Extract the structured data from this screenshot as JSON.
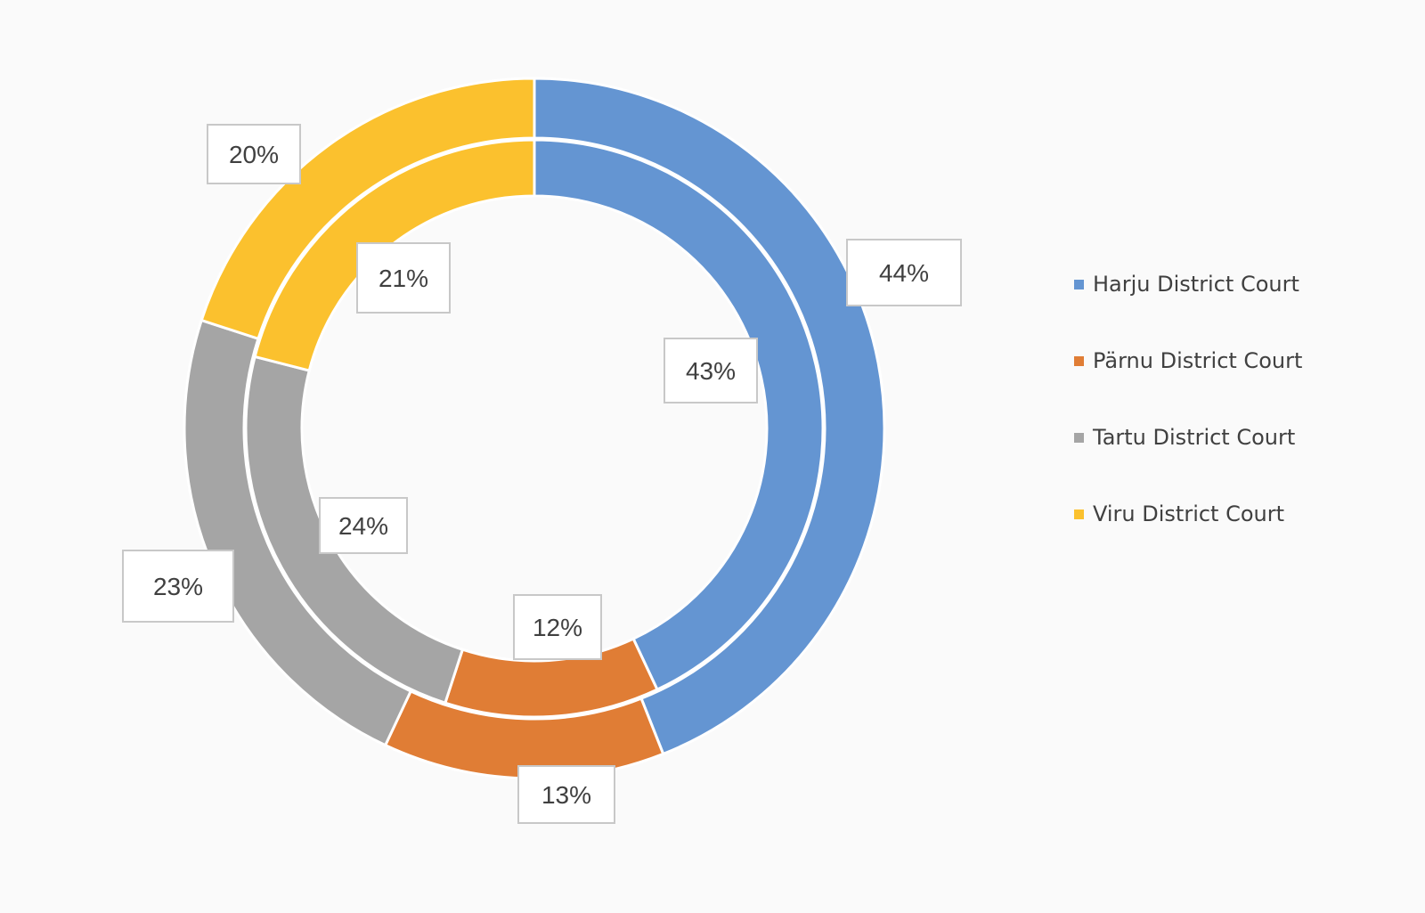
{
  "chart_data": {
    "type": "pie",
    "subtype": "doughnut",
    "categories": [
      "Harju District Court",
      "Pärnu District Court",
      "Tartu District Court",
      "Viru District Court"
    ],
    "series": [
      {
        "ring": "outer",
        "values": [
          44,
          13,
          23,
          20
        ],
        "labels": [
          "44%",
          "13%",
          "23%",
          "20%"
        ]
      },
      {
        "ring": "inner",
        "values": [
          43,
          12,
          24,
          21
        ],
        "labels": [
          "43%",
          "12%",
          "24%",
          "21%"
        ]
      }
    ],
    "colors": [
      "#6495d2",
      "#e07d35",
      "#a5a5a5",
      "#fbc12e"
    ],
    "legend": "right"
  }
}
